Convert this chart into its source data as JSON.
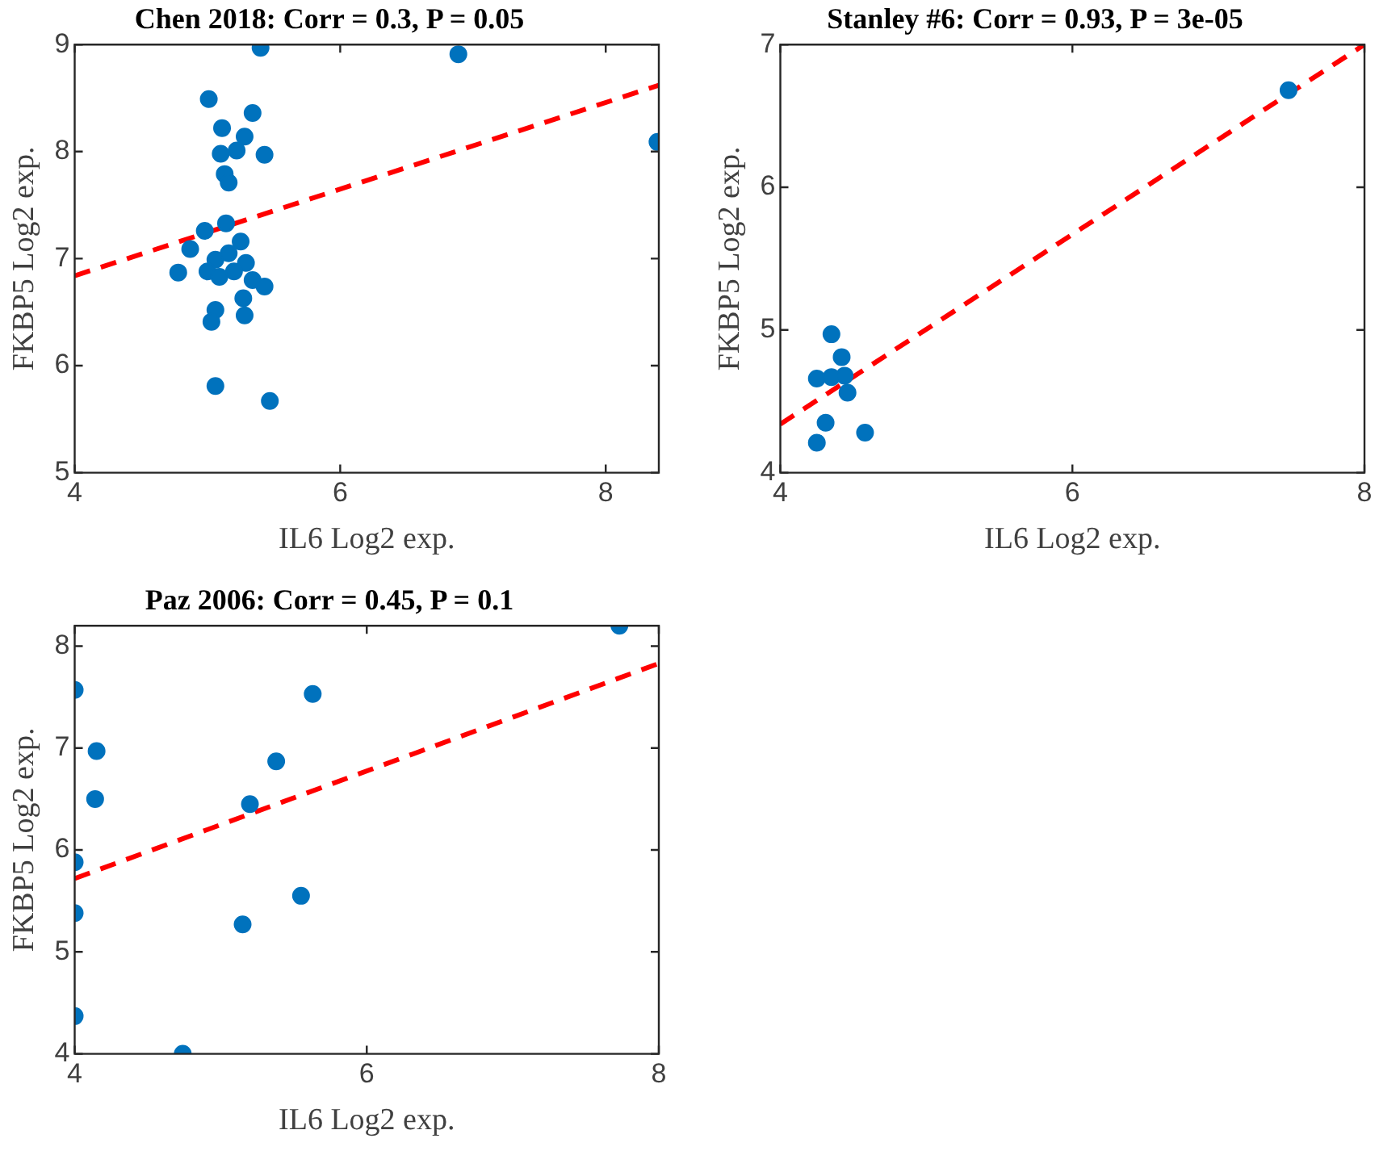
{
  "chart_data": [
    {
      "type": "scatter",
      "title": "Chen 2018: Corr = 0.3, P = 0.05",
      "xlabel": "IL6 Log2 exp.",
      "ylabel": "FKBP5 Log2 exp.",
      "xlim": [
        4,
        8.4
      ],
      "ylim": [
        5,
        9
      ],
      "xticks": [
        4,
        6,
        8
      ],
      "yticks": [
        5,
        6,
        7,
        8,
        9
      ],
      "series": [
        {
          "marker": "circle",
          "color": "#0072bd",
          "x": [
            5.4,
            6.89,
            8.39,
            5.01,
            5.34,
            5.11,
            5.28,
            5.1,
            5.22,
            5.43,
            5.13,
            5.16,
            5.14,
            4.98,
            4.87,
            4.78,
            5.25,
            5.06,
            5.16,
            5.29,
            5.0,
            5.09,
            5.2,
            5.34,
            5.43,
            5.27,
            5.06,
            5.03,
            5.28,
            5.06,
            5.47
          ],
          "values": [
            8.97,
            8.91,
            8.09,
            8.49,
            8.36,
            8.22,
            8.14,
            7.98,
            8.01,
            7.97,
            7.79,
            7.71,
            7.33,
            7.26,
            7.09,
            6.87,
            7.16,
            6.99,
            7.05,
            6.96,
            6.88,
            6.83,
            6.88,
            6.8,
            6.74,
            6.63,
            6.52,
            6.41,
            6.47,
            5.81,
            5.67
          ]
        },
        {
          "type": "line",
          "color": "#ff0000",
          "line_style": "dashed",
          "x": [
            4,
            8.4
          ],
          "values": [
            6.84,
            8.62
          ]
        }
      ]
    },
    {
      "type": "scatter",
      "title": "Stanley #6: Corr = 0.93, P = 3e-05",
      "xlabel": "IL6 Log2 exp.",
      "ylabel": "FKBP5 Log2 exp.",
      "xlim": [
        4,
        8
      ],
      "ylim": [
        4,
        7
      ],
      "xticks": [
        4,
        6,
        8
      ],
      "yticks": [
        4,
        5,
        6,
        7
      ],
      "series": [
        {
          "marker": "circle",
          "color": "#0072bd",
          "x": [
            7.48,
            4.35,
            4.42,
            4.25,
            4.35,
            4.44,
            4.46,
            4.31,
            4.58,
            4.25
          ],
          "values": [
            6.68,
            4.97,
            4.81,
            4.66,
            4.67,
            4.68,
            4.56,
            4.35,
            4.28,
            4.21
          ]
        },
        {
          "type": "line",
          "color": "#ff0000",
          "line_style": "dashed",
          "x": [
            4,
            8
          ],
          "values": [
            4.34,
            7.0
          ]
        }
      ]
    },
    {
      "type": "scatter",
      "title": "Paz 2006: Corr = 0.45, P = 0.1",
      "xlabel": "IL6 Log2 exp.",
      "ylabel": "FKBP5 Log2 exp.",
      "xlim": [
        4,
        8
      ],
      "ylim": [
        4,
        8.2
      ],
      "xticks": [
        4,
        6,
        8
      ],
      "yticks": [
        4,
        5,
        6,
        7,
        8
      ],
      "series": [
        {
          "marker": "circle",
          "color": "#0072bd",
          "x": [
            7.73,
            4.0,
            5.63,
            4.15,
            5.38,
            4.14,
            5.2,
            4.0,
            5.55,
            4.0,
            5.15,
            4.0,
            4.74
          ],
          "values": [
            8.2,
            7.57,
            7.53,
            6.97,
            6.87,
            6.5,
            6.45,
            5.88,
            5.55,
            5.38,
            5.27,
            4.37,
            4.0
          ]
        },
        {
          "type": "line",
          "color": "#ff0000",
          "line_style": "dashed",
          "x": [
            4,
            8
          ],
          "values": [
            5.72,
            7.83
          ]
        }
      ]
    }
  ]
}
